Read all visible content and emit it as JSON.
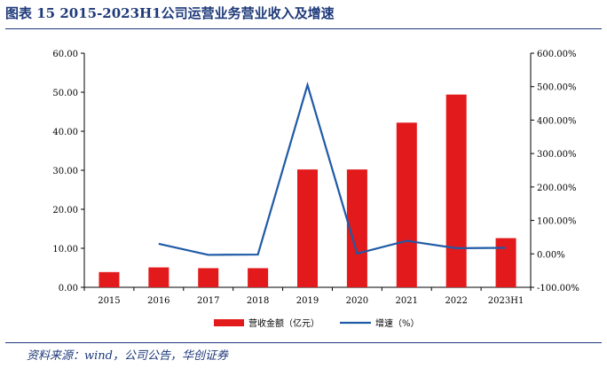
{
  "header": {
    "title": "图表 15   2015-2023H1公司运营业务营业收入及增速",
    "source": "资料来源：wind，公司公告，华创证券"
  },
  "colors": {
    "bar": "#e31a1c",
    "line": "#1f5aa6",
    "axis": "#000000",
    "title": "#1f3a7a"
  },
  "chart_data": {
    "type": "bar+line",
    "categories": [
      "2015",
      "2016",
      "2017",
      "2018",
      "2019",
      "2020",
      "2021",
      "2022",
      "2023H1"
    ],
    "series": [
      {
        "name": "营收金额（亿元）",
        "type": "bar",
        "axis": "left",
        "values": [
          3.9,
          5.1,
          4.9,
          4.9,
          30.2,
          30.2,
          42.2,
          49.4,
          12.6
        ]
      },
      {
        "name": "增速（%）",
        "type": "line",
        "axis": "right",
        "values": [
          null,
          30.0,
          -3.0,
          -2.0,
          505.0,
          1.0,
          39.0,
          17.0,
          18.0
        ]
      }
    ],
    "y_left": {
      "min": 0,
      "max": 60,
      "step": 10,
      "tick_labels": [
        "0.00",
        "10.00",
        "20.00",
        "30.00",
        "40.00",
        "50.00",
        "60.00"
      ]
    },
    "y_right": {
      "min": -100,
      "max": 600,
      "step": 100,
      "tick_labels": [
        "-100.00%",
        "0.00%",
        "100.00%",
        "200.00%",
        "300.00%",
        "400.00%",
        "500.00%",
        "600.00%"
      ]
    },
    "legend": {
      "position": "bottom-center",
      "items": [
        "营收金额（亿元）",
        "增速（%）"
      ]
    },
    "grid": false
  }
}
